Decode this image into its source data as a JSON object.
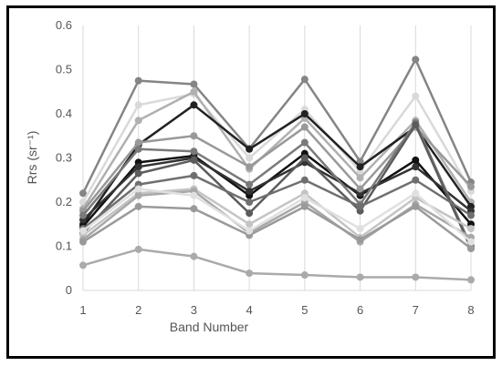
{
  "chart_data": {
    "type": "line",
    "xlabel": "Band Number",
    "ylabel": "Rrs (sr⁻¹)",
    "x": [
      1,
      2,
      3,
      4,
      5,
      6,
      7,
      8
    ],
    "ylim": [
      0,
      0.6
    ],
    "ytick_labels": [
      "0",
      "0.1",
      "0.2",
      "0.3",
      "0.4",
      "0.5",
      "0.6"
    ],
    "xtick_labels": [
      "1",
      "2",
      "3",
      "4",
      "5",
      "6",
      "7",
      "8"
    ],
    "grid": "vertical",
    "legend": "none",
    "series": [
      {
        "values": [
          0.057,
          0.093,
          0.077,
          0.039,
          0.035,
          0.03,
          0.03,
          0.024
        ],
        "color": "#aaaaaa"
      },
      {
        "values": [
          0.22,
          0.475,
          0.467,
          0.321,
          0.478,
          0.292,
          0.523,
          0.245
        ],
        "color": "#858585"
      },
      {
        "values": [
          0.2,
          0.42,
          0.445,
          0.3,
          0.41,
          0.27,
          0.44,
          0.225
        ],
        "color": "#d9d9d9"
      },
      {
        "values": [
          0.185,
          0.385,
          0.45,
          0.275,
          0.39,
          0.255,
          0.385,
          0.2
        ],
        "color": "#b0b0b0"
      },
      {
        "values": [
          0.15,
          0.33,
          0.42,
          0.32,
          0.4,
          0.28,
          0.37,
          0.19
        ],
        "color": "#222222"
      },
      {
        "values": [
          0.145,
          0.29,
          0.305,
          0.215,
          0.31,
          0.215,
          0.295,
          0.15
        ],
        "color": "#111111"
      },
      {
        "values": [
          0.16,
          0.28,
          0.3,
          0.225,
          0.29,
          0.22,
          0.28,
          0.18
        ],
        "color": "#333333"
      },
      {
        "values": [
          0.18,
          0.335,
          0.35,
          0.28,
          0.37,
          0.23,
          0.37,
          0.235
        ],
        "color": "#999999"
      },
      {
        "values": [
          0.17,
          0.32,
          0.315,
          0.24,
          0.335,
          0.195,
          0.38,
          0.1
        ],
        "color": "#7a7a7a"
      },
      {
        "values": [
          0.13,
          0.265,
          0.295,
          0.175,
          0.3,
          0.18,
          0.375,
          0.095
        ],
        "color": "#5c5c5c"
      },
      {
        "values": [
          0.14,
          0.24,
          0.26,
          0.2,
          0.25,
          0.19,
          0.25,
          0.17
        ],
        "color": "#6f6f6f"
      },
      {
        "values": [
          0.125,
          0.22,
          0.23,
          0.15,
          0.22,
          0.12,
          0.21,
          0.14
        ],
        "color": "#c4c4c4"
      },
      {
        "values": [
          0.115,
          0.215,
          0.225,
          0.13,
          0.2,
          0.11,
          0.195,
          0.12
        ],
        "color": "#a8a8a8"
      },
      {
        "values": [
          0.11,
          0.19,
          0.185,
          0.125,
          0.19,
          0.115,
          0.19,
          0.095
        ],
        "color": "#9a9a9a"
      },
      {
        "values": [
          0.135,
          0.23,
          0.215,
          0.135,
          0.21,
          0.14,
          0.22,
          0.11
        ],
        "color": "#e0e0e0"
      }
    ]
  }
}
